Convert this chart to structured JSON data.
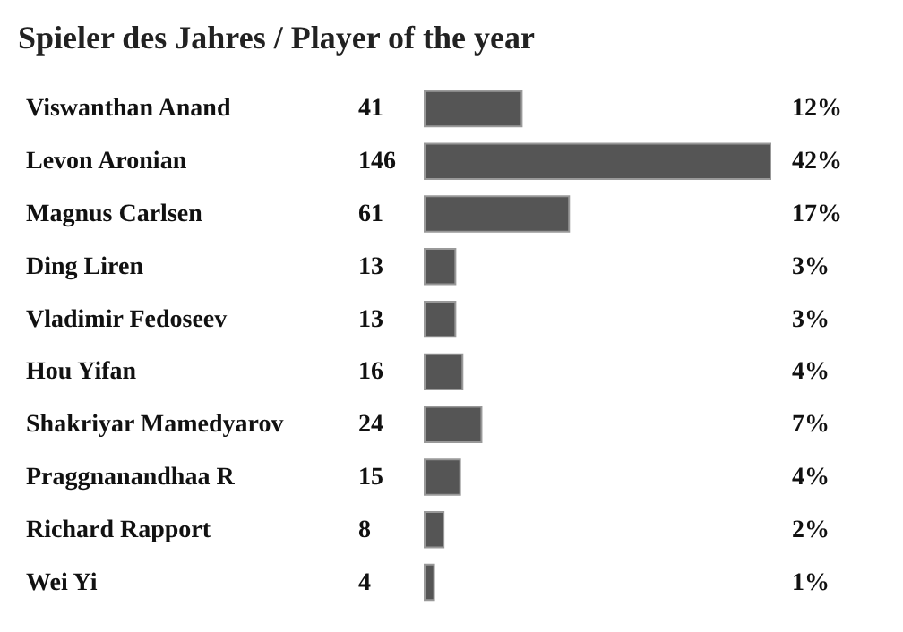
{
  "chart_data": {
    "type": "bar",
    "orientation": "horizontal",
    "title": "Spieler des Jahres / Player of the year",
    "categories": [
      "Viswanthan Anand",
      "Levon Aronian",
      "Magnus Carlsen",
      "Ding Liren",
      "Vladimir Fedoseev",
      "Hou Yifan",
      "Shakriyar Mamedyarov",
      "Praggnanandhaa R",
      "Richard Rapport",
      "Wei Yi"
    ],
    "values": [
      41,
      146,
      61,
      13,
      13,
      16,
      24,
      15,
      8,
      4
    ],
    "color": "#555555",
    "data_labels": true,
    "annotations": [
      "12%",
      "42%",
      "17%",
      "3%",
      "3%",
      "4%",
      "7%",
      "4%",
      "2%",
      "1%"
    ]
  }
}
